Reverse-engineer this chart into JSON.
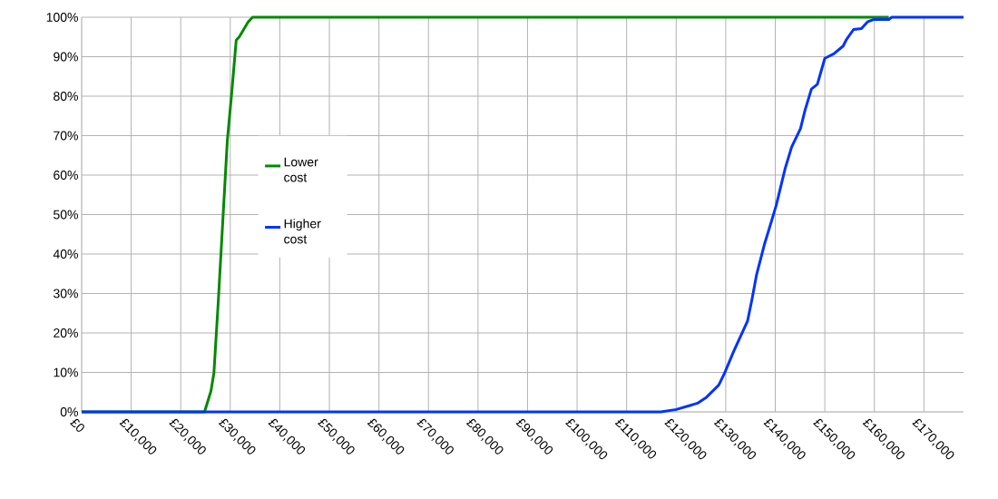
{
  "chart_data": {
    "type": "line",
    "x": [
      0,
      18500,
      24800,
      26100,
      26700,
      27600,
      28500,
      29400,
      30300,
      31200,
      31800,
      33600,
      34500,
      162900
    ],
    "series": [
      {
        "name": "Lower cost",
        "color": "#008a00",
        "values": [
          0,
          0,
          0,
          5.3,
          9.9,
          28.5,
          48.6,
          68.7,
          81,
          94.2,
          95,
          98.8,
          100,
          100
        ]
      },
      {
        "name": "Higher cost",
        "color": "#0033ff",
        "x": [
          0,
          111400,
          116900,
          120000,
          124300,
          126100,
          128600,
          129800,
          131600,
          134400,
          135300,
          136200,
          137800,
          139300,
          140200,
          142000,
          143300,
          145100,
          146000,
          147300,
          148500,
          150000,
          151800,
          153700,
          154300,
          155800,
          157400,
          158600,
          159800,
          162900,
          163500,
          178000
        ],
        "values": [
          0,
          0,
          0,
          0.6,
          2.2,
          3.7,
          6.8,
          9.9,
          15.3,
          23,
          28.5,
          34.6,
          42.4,
          48.6,
          52.4,
          61.7,
          67.1,
          71.8,
          76.4,
          81.8,
          83,
          89.6,
          90.7,
          92.7,
          94.2,
          96.9,
          97.1,
          98.8,
          99.4,
          99.4,
          100,
          100
        ]
      }
    ],
    "xlim": [
      0,
      178000
    ],
    "xticks": [
      {
        "value": 0,
        "label": "£0"
      },
      {
        "value": 10000,
        "label": "£10,000"
      },
      {
        "value": 20000,
        "label": "£20,000"
      },
      {
        "value": 30000,
        "label": "£30,000"
      },
      {
        "value": 40000,
        "label": "£40,000"
      },
      {
        "value": 50000,
        "label": "£50,000"
      },
      {
        "value": 60000,
        "label": "£60,000"
      },
      {
        "value": 70000,
        "label": "£70,000"
      },
      {
        "value": 80000,
        "label": "£80,000"
      },
      {
        "value": 90000,
        "label": "£90,000"
      },
      {
        "value": 100000,
        "label": "£100,000"
      },
      {
        "value": 110000,
        "label": "£110,000"
      },
      {
        "value": 120000,
        "label": "£120,000"
      },
      {
        "value": 130000,
        "label": "£130,000"
      },
      {
        "value": 140000,
        "label": "£140,000"
      },
      {
        "value": 150000,
        "label": "£150,000"
      },
      {
        "value": 160000,
        "label": "£160,000"
      },
      {
        "value": 170000,
        "label": "£170,000"
      }
    ],
    "ylim": [
      0,
      100
    ],
    "yticks": [
      {
        "value": 0,
        "label": "0%"
      },
      {
        "value": 10,
        "label": "10%"
      },
      {
        "value": 20,
        "label": "20%"
      },
      {
        "value": 30,
        "label": "30%"
      },
      {
        "value": 40,
        "label": "40%"
      },
      {
        "value": 50,
        "label": "50%"
      },
      {
        "value": 60,
        "label": "60%"
      },
      {
        "value": 70,
        "label": "70%"
      },
      {
        "value": 80,
        "label": "80%"
      },
      {
        "value": 90,
        "label": "90%"
      },
      {
        "value": 100,
        "label": "100%"
      }
    ],
    "grid": true,
    "legend": "left",
    "marker": "none",
    "line_style": "solid"
  }
}
